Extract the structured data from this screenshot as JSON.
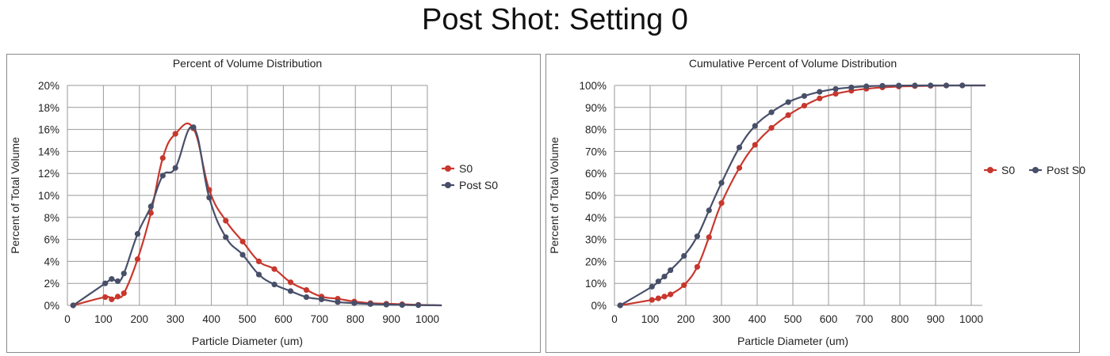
{
  "page": {
    "title": "Post Shot: Setting 0"
  },
  "chart_data": [
    {
      "type": "line",
      "title": "Percent of Volume Distribution",
      "xlabel": "Particle Diameter (um)",
      "ylabel": "Percent of Total Volume",
      "xlim": [
        0,
        1000
      ],
      "ylim": [
        0,
        20
      ],
      "x_ticks": [
        "0",
        "100",
        "200",
        "300",
        "400",
        "500",
        "600",
        "700",
        "800",
        "900",
        "1000"
      ],
      "y_ticks": [
        "0%",
        "2%",
        "4%",
        "6%",
        "8%",
        "10%",
        "12%",
        "14%",
        "16%",
        "18%",
        "20%"
      ],
      "grid": true,
      "legend": "right",
      "series": [
        {
          "name": "S0",
          "color": "#c8372d",
          "points": [
            [
              16,
              0
            ],
            [
              105,
              0.75
            ],
            [
              123,
              0.55
            ],
            [
              140,
              0.8
            ],
            [
              157,
              1.1
            ],
            [
              195,
              4.2
            ],
            [
              232,
              8.4
            ],
            [
              265,
              13.4
            ],
            [
              300,
              15.6
            ],
            [
              350,
              16.1
            ],
            [
              394,
              10.5
            ],
            [
              440,
              7.7
            ],
            [
              487,
              5.8
            ],
            [
              532,
              4.0
            ],
            [
              575,
              3.3
            ],
            [
              620,
              2.1
            ],
            [
              664,
              1.4
            ],
            [
              706,
              0.8
            ],
            [
              751,
              0.6
            ],
            [
              797,
              0.35
            ],
            [
              842,
              0.2
            ],
            [
              886,
              0.15
            ],
            [
              930,
              0.1
            ],
            [
              975,
              0.05
            ],
            [
              1020,
              0.02
            ],
            [
              1040,
              0
            ]
          ]
        },
        {
          "name": "Post S0",
          "color": "#474f69",
          "points": [
            [
              16,
              0
            ],
            [
              105,
              2.0
            ],
            [
              123,
              2.4
            ],
            [
              140,
              2.2
            ],
            [
              157,
              2.9
            ],
            [
              195,
              6.5
            ],
            [
              232,
              9.0
            ],
            [
              265,
              11.8
            ],
            [
              300,
              12.5
            ],
            [
              350,
              16.2
            ],
            [
              394,
              9.8
            ],
            [
              440,
              6.2
            ],
            [
              487,
              4.6
            ],
            [
              532,
              2.8
            ],
            [
              575,
              1.9
            ],
            [
              620,
              1.3
            ],
            [
              664,
              0.75
            ],
            [
              706,
              0.55
            ],
            [
              751,
              0.3
            ],
            [
              797,
              0.2
            ],
            [
              842,
              0.12
            ],
            [
              886,
              0.07
            ],
            [
              930,
              0.04
            ],
            [
              975,
              0.02
            ],
            [
              1020,
              0.01
            ],
            [
              1040,
              0
            ]
          ]
        }
      ]
    },
    {
      "type": "line",
      "title": "Cumulative Percent of Volume Distribution",
      "xlabel": "Particle Diameter (um)",
      "ylabel": "Percent of Total Volume",
      "xlim": [
        0,
        1000
      ],
      "ylim": [
        0,
        100
      ],
      "x_ticks": [
        "0",
        "100",
        "200",
        "300",
        "400",
        "500",
        "600",
        "700",
        "800",
        "900",
        "1000"
      ],
      "y_ticks": [
        "0%",
        "10%",
        "20%",
        "30%",
        "40%",
        "50%",
        "60%",
        "70%",
        "80%",
        "90%",
        "100%"
      ],
      "grid": true,
      "legend": "right",
      "series": [
        {
          "name": "S0",
          "color": "#c8372d",
          "points": [
            [
              16,
              0
            ],
            [
              105,
              2.5
            ],
            [
              123,
              3.2
            ],
            [
              140,
              4.0
            ],
            [
              157,
              5.0
            ],
            [
              195,
              9.2
            ],
            [
              232,
              17.5
            ],
            [
              265,
              31
            ],
            [
              300,
              46.5
            ],
            [
              350,
              62.5
            ],
            [
              394,
              73
            ],
            [
              440,
              80.7
            ],
            [
              487,
              86.5
            ],
            [
              532,
              90.8
            ],
            [
              575,
              94.1
            ],
            [
              620,
              96.2
            ],
            [
              664,
              97.6
            ],
            [
              706,
              98.5
            ],
            [
              751,
              99.1
            ],
            [
              797,
              99.5
            ],
            [
              842,
              99.7
            ],
            [
              886,
              99.85
            ],
            [
              930,
              99.95
            ],
            [
              975,
              100
            ],
            [
              1020,
              100
            ],
            [
              1040,
              100
            ]
          ]
        },
        {
          "name": "Post S0",
          "color": "#474f69",
          "points": [
            [
              16,
              0
            ],
            [
              105,
              8.5
            ],
            [
              123,
              10.9
            ],
            [
              140,
              13.1
            ],
            [
              157,
              16
            ],
            [
              195,
              22.5
            ],
            [
              232,
              31.4
            ],
            [
              265,
              43.2
            ],
            [
              300,
              55.7
            ],
            [
              350,
              71.8
            ],
            [
              394,
              81.6
            ],
            [
              440,
              87.8
            ],
            [
              487,
              92.4
            ],
            [
              532,
              95.2
            ],
            [
              575,
              97.1
            ],
            [
              620,
              98.4
            ],
            [
              664,
              99.1
            ],
            [
              706,
              99.6
            ],
            [
              751,
              99.85
            ],
            [
              797,
              99.95
            ],
            [
              842,
              100
            ],
            [
              886,
              100
            ],
            [
              930,
              100
            ],
            [
              975,
              100
            ],
            [
              1020,
              100
            ],
            [
              1040,
              100
            ]
          ]
        }
      ]
    }
  ]
}
